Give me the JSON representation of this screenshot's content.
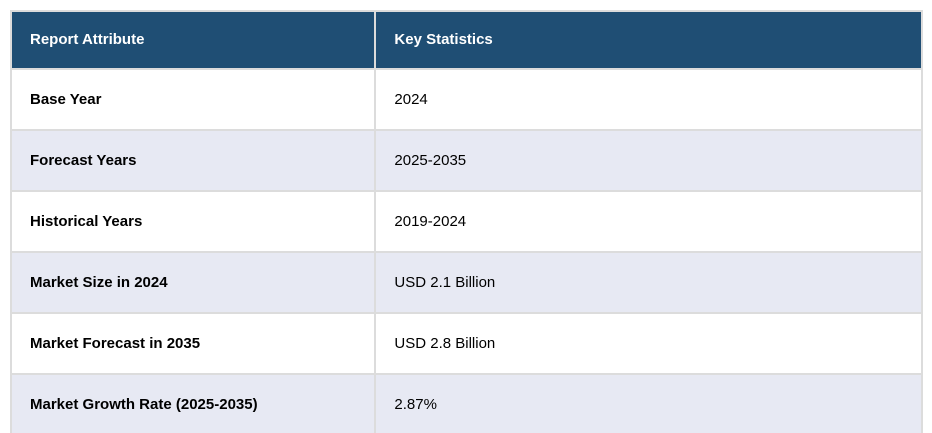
{
  "chart_data": {
    "type": "table",
    "columns": [
      "Report Attribute",
      "Key Statistics"
    ],
    "rows": [
      [
        "Base Year",
        "2024"
      ],
      [
        "Forecast Years",
        "2025-2035"
      ],
      [
        "Historical Years",
        "2019-2024"
      ],
      [
        "Market Size in 2024",
        "USD 2.1 Billion"
      ],
      [
        "Market Forecast in 2035",
        "USD 2.8 Billion"
      ],
      [
        "Market Growth Rate (2025-2035)",
        "2.87%"
      ]
    ]
  },
  "table": {
    "headers": [
      "Report Attribute",
      "Key Statistics"
    ],
    "rows": [
      {
        "attribute": "Base Year",
        "value": "2024"
      },
      {
        "attribute": "Forecast Years",
        "value": "2025-2035"
      },
      {
        "attribute": "Historical Years",
        "value": "2019-2024"
      },
      {
        "attribute": "Market Size in 2024",
        "value": "USD 2.1 Billion"
      },
      {
        "attribute": "Market Forecast in 2035",
        "value": "USD 2.8 Billion"
      },
      {
        "attribute": "Market Growth Rate (2025-2035)",
        "value": "2.87%"
      }
    ],
    "colors": {
      "header_bg": "#1f4e74",
      "header_text": "#ffffff",
      "row_bg": "#ffffff",
      "row_alt_bg": "#e7e9f3",
      "border": "#dcdcdc",
      "body_text": "#000000"
    }
  }
}
